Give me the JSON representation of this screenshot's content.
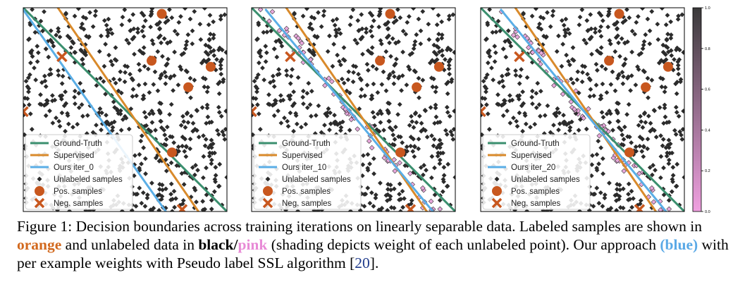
{
  "chart_data": {
    "type": "scatter",
    "panels": [
      {
        "iteration_label": "Ours iter_0",
        "blue_line": [
          [
            0.0,
            0.99
          ],
          [
            0.7,
            0.0
          ]
        ],
        "weighted": false
      },
      {
        "iteration_label": "Ours iter_10",
        "blue_line": [
          [
            0.07,
            0.99
          ],
          [
            0.89,
            0.0
          ]
        ],
        "weighted": true
      },
      {
        "iteration_label": "Ours iter_20",
        "blue_line": [
          [
            0.1,
            0.99
          ],
          [
            0.91,
            0.0
          ]
        ],
        "weighted": true
      }
    ],
    "ground_truth_line": [
      [
        0.0,
        1.0
      ],
      [
        1.0,
        0.0
      ]
    ],
    "supervised_line": [
      [
        0.17,
        1.0
      ],
      [
        0.86,
        0.0
      ]
    ],
    "positive_samples": [
      [
        0.68,
        0.97
      ],
      [
        0.63,
        0.74
      ],
      [
        0.92,
        0.71
      ],
      [
        0.81,
        0.61
      ],
      [
        0.73,
        0.29
      ]
    ],
    "negative_samples": [
      [
        0.19,
        0.76
      ],
      [
        0.0,
        0.49
      ],
      [
        0.78,
        0.01
      ]
    ],
    "legend": {
      "placement": "bottom-left",
      "entries": [
        "Ground-Truth",
        "Supervised",
        "Unlabeled samples",
        "Pos. samples",
        "Neg. samples"
      ]
    },
    "colorbar": {
      "range": [
        0.0,
        1.0
      ],
      "ticks": [
        "0.0",
        "0.2",
        "0.4",
        "0.6",
        "0.8",
        "1.0"
      ],
      "colors": [
        "#f0a0e0",
        "#3a3a3a"
      ]
    },
    "colors": {
      "ground_truth": "#3a8f6e",
      "supervised": "#d98a2b",
      "ours": "#5aaee6",
      "labeled": "#c8571e",
      "unlabeled": "#2b2b2b",
      "weighted_unlabeled": "#e8a8dc"
    }
  },
  "caption": {
    "part1": "Figure 1:  Decision boundaries across training iterations on linearly separable data. Labeled samples are shown in ",
    "orange": "orange",
    "part2": " and unlabeled data in ",
    "black": "black",
    "slash": "/",
    "pink": "pink",
    "part3": " (shading depicts weight of each unlabeled point). Our approach ",
    "blue": "(blue)",
    "part4": " with per example weights with Pseudo label SSL algorithm [",
    "ref": "20",
    "part5": "]."
  }
}
